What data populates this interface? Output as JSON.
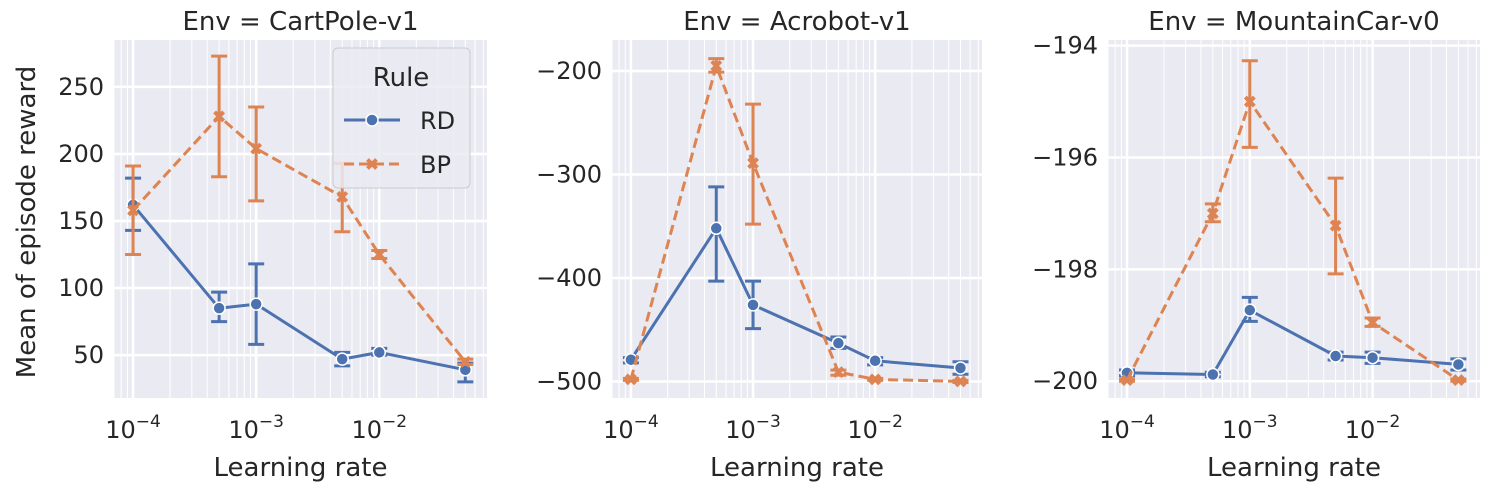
{
  "figure": {
    "ylabel": "Mean of episode reward",
    "xlabel": "Learning rate",
    "legend": {
      "title": "Rule",
      "placement": "top-right of first panel",
      "entries": [
        {
          "name": "RD",
          "color": "#4c72b0",
          "marker": "circle",
          "line": "solid"
        },
        {
          "name": "BP",
          "color": "#dd8452",
          "marker": "x",
          "line": "dashed"
        }
      ]
    },
    "background": "#eaeaf2",
    "grid": true
  },
  "chart_data": [
    {
      "type": "line",
      "title": "Env = CartPole-v1",
      "xscale": "log",
      "xlim": [
        7e-05,
        0.075
      ],
      "ylim": [
        18,
        285
      ],
      "x": [
        0.0001,
        0.0005,
        0.001,
        0.005,
        0.01,
        0.05
      ],
      "xticks": [
        0.0001,
        0.001,
        0.01
      ],
      "xtick_labels": [
        {
          "base": "10",
          "exp": "−4"
        },
        {
          "base": "10",
          "exp": "−3"
        },
        {
          "base": "10",
          "exp": "−2"
        }
      ],
      "yticks": [
        50,
        100,
        150,
        200,
        250
      ],
      "ytick_labels": [
        "50",
        "100",
        "150",
        "200",
        "250"
      ],
      "series": [
        {
          "name": "RD",
          "values": [
            162,
            85,
            88,
            47,
            52,
            39
          ],
          "err_low": [
            143,
            75,
            58,
            42,
            50,
            30
          ],
          "err_high": [
            182,
            97,
            118,
            52,
            55,
            44
          ]
        },
        {
          "name": "BP",
          "values": [
            158,
            228,
            204,
            168,
            125,
            45
          ],
          "err_low": [
            125,
            183,
            165,
            142,
            122,
            43
          ],
          "err_high": [
            191,
            273,
            235,
            193,
            128,
            47
          ]
        }
      ]
    },
    {
      "type": "line",
      "title": "Env = Acrobot-v1",
      "xscale": "log",
      "xlim": [
        7e-05,
        0.075
      ],
      "ylim": [
        -516,
        -170
      ],
      "x": [
        0.0001,
        0.0005,
        0.001,
        0.005,
        0.01,
        0.05
      ],
      "xticks": [
        0.0001,
        0.001,
        0.01
      ],
      "xtick_labels": [
        {
          "base": "10",
          "exp": "−4"
        },
        {
          "base": "10",
          "exp": "−3"
        },
        {
          "base": "10",
          "exp": "−2"
        }
      ],
      "yticks": [
        -500,
        -400,
        -300,
        -200
      ],
      "ytick_labels": [
        "−500",
        "−400",
        "−300",
        "−200"
      ],
      "series": [
        {
          "name": "RD",
          "values": [
            -479,
            -352,
            -426,
            -463,
            -480,
            -487
          ],
          "err_low": [
            -482,
            -403,
            -449,
            -468,
            -484,
            -493
          ],
          "err_high": [
            -477,
            -312,
            -403,
            -457,
            -477,
            -481
          ]
        },
        {
          "name": "BP",
          "values": [
            -498,
            -195,
            -289,
            -491,
            -498,
            -500
          ],
          "err_low": [
            -499,
            -201,
            -348,
            -494,
            -499,
            -501
          ],
          "err_high": [
            -497,
            -188,
            -232,
            -489,
            -497,
            -499
          ]
        }
      ]
    },
    {
      "type": "line",
      "title": "Env = MountainCar-v0",
      "xscale": "log",
      "xlim": [
        7e-05,
        0.075
      ],
      "ylim": [
        -200.3,
        -193.9
      ],
      "x": [
        0.0001,
        0.0005,
        0.001,
        0.005,
        0.01,
        0.05
      ],
      "xticks": [
        0.0001,
        0.001,
        0.01
      ],
      "xtick_labels": [
        {
          "base": "10",
          "exp": "−4"
        },
        {
          "base": "10",
          "exp": "−3"
        },
        {
          "base": "10",
          "exp": "−2"
        }
      ],
      "yticks": [
        -200,
        -198,
        -196,
        -194
      ],
      "ytick_labels": [
        "−200",
        "−198",
        "−196",
        "−194"
      ],
      "series": [
        {
          "name": "RD",
          "values": [
            -199.85,
            -199.88,
            -198.73,
            -199.55,
            -199.58,
            -199.7
          ],
          "err_low": [
            -199.9,
            -199.92,
            -198.93,
            -199.62,
            -199.68,
            -199.8
          ],
          "err_high": [
            -199.8,
            -199.84,
            -198.5,
            -199.48,
            -199.48,
            -199.6
          ]
        },
        {
          "name": "BP",
          "values": [
            -199.98,
            -197.0,
            -195.0,
            -197.22,
            -198.95,
            -199.98
          ],
          "err_low": [
            -200.0,
            -197.15,
            -195.82,
            -198.08,
            -199.02,
            -200.0
          ],
          "err_high": [
            -199.96,
            -196.83,
            -194.27,
            -196.37,
            -198.87,
            -199.96
          ]
        }
      ]
    }
  ]
}
